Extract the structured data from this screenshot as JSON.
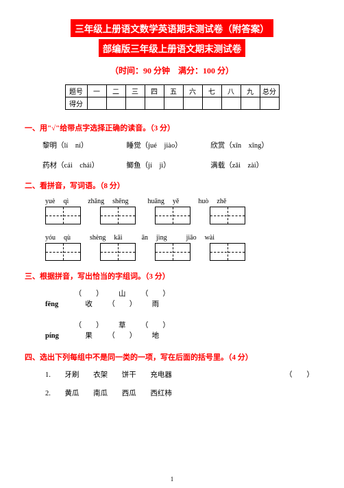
{
  "header": {
    "title1": "三年级上册语文数学英语期末测试卷（附答案）",
    "title2": "部编版三年级上册语文期末测试卷",
    "subtitle": "（时间：90 分钟　满分：100 分）"
  },
  "scoreTable": {
    "row1Label": "题号",
    "cols": [
      "一",
      "二",
      "三",
      "四",
      "五",
      "六",
      "七",
      "八",
      "九",
      "总分"
    ],
    "row2Label": "得分"
  },
  "s1": {
    "heading": "一、用\"√\"给带点字选择正确的读音。（3 分）",
    "row1": [
      "黎明（lí　ní）",
      "睡觉（jué　jiào）",
      "欣赏（xīn　xīng）"
    ],
    "row2": [
      "药材（cái　chái）",
      "鲫鱼（jí　jì）",
      "满载（zǎi　zài）"
    ]
  },
  "s2": {
    "heading": "二、看拼音，写词语。（8 分）",
    "pinyin1": [
      [
        "yuè",
        "qì"
      ],
      [
        "zhǎng",
        "shēng"
      ],
      [
        "huāng",
        "yě"
      ],
      [
        "huò",
        "zhě"
      ]
    ],
    "pinyin2": [
      [
        "yóu",
        "qù"
      ],
      [
        "shèng",
        "kāi"
      ],
      [
        "ān",
        "jìng"
      ],
      [
        "jiāo",
        "wài"
      ]
    ]
  },
  "s3": {
    "heading": "三、根据拼音，写出恰当的字组词。（3 分）",
    "rows": [
      {
        "label": "fēng",
        "a": "（　　）收",
        "b": "山（　　）",
        "c": "（　　）雨"
      },
      {
        "label": "píng",
        "a": "（　　）果",
        "b": "草（　　）",
        "c": "（　　）地"
      }
    ]
  },
  "s4": {
    "heading": "四、选出下列每组中不是同一类的一项，写在后面的括号里。（4 分）",
    "rows": [
      {
        "num": "1.",
        "items": [
          "牙刷",
          "衣架",
          "饼干",
          "充电器"
        ],
        "paren": "（　　）"
      },
      {
        "num": "2.",
        "items": [
          "黄瓜",
          "南瓜",
          "西瓜",
          "西红柿"
        ],
        "paren": ""
      }
    ]
  },
  "pageNum": "1"
}
